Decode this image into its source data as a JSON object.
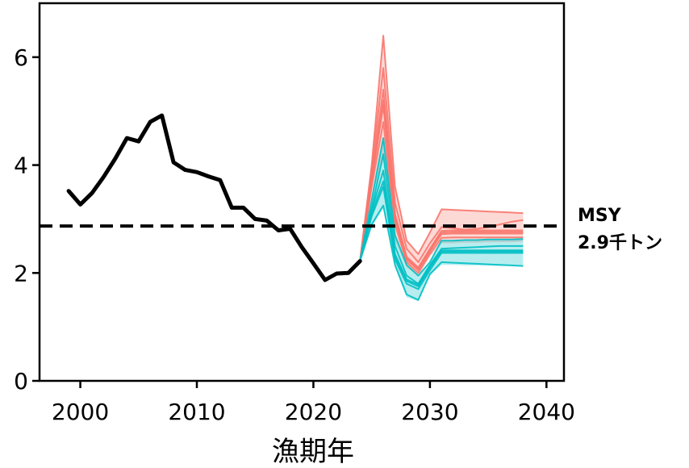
{
  "chart_data": {
    "type": "line",
    "title": "",
    "xlabel": "漁期年",
    "ylabel": "",
    "xlim": [
      1996.5,
      2041.5
    ],
    "ylim": [
      0,
      7
    ],
    "xticks": [
      2000,
      2010,
      2020,
      2030,
      2040
    ],
    "yticks": [
      0,
      2,
      4,
      6
    ],
    "grid": false,
    "reference_line": {
      "value": 2.87,
      "style": "dashed",
      "label_line1": "MSY",
      "label_line2": "2.9千トン"
    },
    "series": [
      {
        "color": "#000000",
        "x": [
          1999,
          2000,
          2001,
          2002,
          2003,
          2004,
          2005,
          2006,
          2007,
          2008,
          2009,
          2010,
          2011,
          2012,
          2013,
          2014,
          2015,
          2016,
          2017,
          2018,
          2019,
          2020,
          2021,
          2022,
          2023,
          2024
        ],
        "values": [
          3.52,
          3.27,
          3.48,
          3.78,
          4.12,
          4.5,
          4.44,
          4.8,
          4.92,
          4.05,
          3.91,
          3.87,
          3.79,
          3.72,
          3.21,
          3.21,
          3.0,
          2.97,
          2.79,
          2.82,
          2.48,
          2.18,
          1.87,
          1.99,
          2.0,
          2.22
        ]
      }
    ],
    "projection_x": [
      2024,
      2025,
      2026,
      2027,
      2028,
      2029,
      2030,
      2031,
      2032,
      2033,
      2034,
      2035,
      2036,
      2037,
      2038
    ],
    "projection_groups": [
      {
        "color": "#F8766D",
        "band_upper": [
          2.22,
          4.0,
          6.4,
          3.6,
          2.6,
          2.35,
          2.75,
          3.18,
          3.17,
          3.16,
          3.15,
          3.14,
          3.13,
          3.12,
          3.11
        ],
        "band_lower": [
          2.22,
          3.4,
          4.1,
          2.6,
          2.1,
          1.95,
          2.3,
          2.55,
          2.55,
          2.56,
          2.56,
          2.57,
          2.57,
          2.57,
          2.58
        ],
        "lines": [
          [
            2.22,
            3.8,
            5.4,
            3.1,
            2.3,
            2.1,
            2.45,
            2.78,
            2.79,
            2.79,
            2.79,
            2.79,
            2.79,
            2.79,
            2.79
          ],
          [
            2.22,
            3.7,
            5.1,
            3.0,
            2.25,
            2.05,
            2.4,
            2.72,
            2.73,
            2.73,
            2.73,
            2.73,
            2.73,
            2.73,
            2.73
          ],
          [
            2.22,
            3.9,
            5.8,
            3.3,
            2.45,
            2.2,
            2.55,
            2.85,
            2.83,
            2.8,
            2.82,
            2.85,
            2.9,
            2.95,
            2.98
          ],
          [
            2.22,
            3.6,
            4.8,
            2.9,
            2.2,
            2.0,
            2.35,
            2.65,
            2.66,
            2.66,
            2.66,
            2.66,
            2.66,
            2.66,
            2.66
          ],
          [
            2.22,
            4.0,
            6.4,
            3.6,
            2.6,
            2.35,
            2.75,
            3.18,
            3.17,
            3.16,
            3.15,
            3.14,
            3.13,
            3.12,
            3.11
          ],
          [
            2.22,
            3.75,
            5.2,
            3.05,
            2.28,
            2.08,
            2.42,
            2.75,
            2.76,
            2.76,
            2.76,
            2.76,
            2.76,
            2.76,
            2.76
          ]
        ]
      },
      {
        "color": "#00BFC4",
        "band_upper": [
          2.22,
          3.35,
          4.5,
          2.7,
          2.15,
          1.95,
          2.2,
          2.6,
          2.6,
          2.61,
          2.61,
          2.62,
          2.62,
          2.62,
          2.63
        ],
        "band_lower": [
          2.22,
          2.85,
          3.2,
          2.1,
          1.55,
          1.48,
          1.95,
          2.15,
          2.15,
          2.14,
          2.14,
          2.14,
          2.13,
          2.13,
          2.12
        ],
        "lines": [
          [
            2.22,
            3.1,
            3.7,
            2.3,
            1.85,
            1.75,
            2.1,
            2.4,
            2.4,
            2.4,
            2.4,
            2.4,
            2.4,
            2.4,
            2.4
          ],
          [
            2.22,
            3.05,
            3.6,
            2.25,
            1.8,
            1.7,
            2.05,
            2.37,
            2.37,
            2.37,
            2.37,
            2.37,
            2.37,
            2.37,
            2.37
          ],
          [
            2.22,
            3.2,
            4.2,
            2.5,
            1.95,
            1.8,
            2.15,
            2.45,
            2.46,
            2.47,
            2.48,
            2.49,
            2.5,
            2.5,
            2.5
          ],
          [
            2.22,
            2.9,
            3.25,
            2.15,
            1.6,
            1.5,
            1.98,
            2.2,
            2.19,
            2.18,
            2.17,
            2.16,
            2.15,
            2.14,
            2.13
          ],
          [
            2.22,
            3.35,
            4.5,
            2.7,
            2.15,
            1.95,
            2.2,
            2.6,
            2.6,
            2.61,
            2.61,
            2.62,
            2.62,
            2.62,
            2.63
          ],
          [
            2.22,
            3.15,
            3.9,
            2.35,
            1.88,
            1.78,
            2.12,
            2.42,
            2.42,
            2.42,
            2.42,
            2.42,
            2.42,
            2.42,
            2.42
          ]
        ]
      }
    ]
  }
}
